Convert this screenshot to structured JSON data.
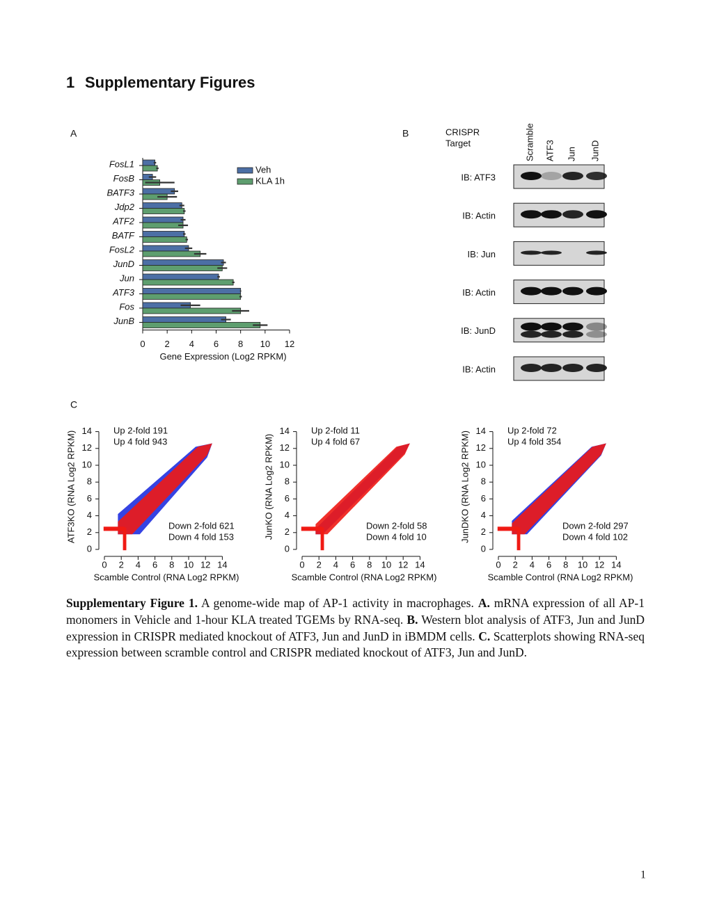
{
  "header": {
    "number": "1",
    "title": "Supplementary Figures"
  },
  "panels": {
    "a": "A",
    "b": "B",
    "c": "C"
  },
  "chart_data": [
    {
      "type": "bar",
      "orientation": "horizontal",
      "categories": [
        "FosL1",
        "FosB",
        "BATF3",
        "Jdp2",
        "ATF2",
        "BATF",
        "FosL2",
        "JunD",
        "Jun",
        "ATF3",
        "Fos",
        "JunB"
      ],
      "series": [
        {
          "name": "Veh",
          "color": "#4c6fa5",
          "values": [
            1.0,
            0.8,
            2.6,
            3.2,
            3.3,
            3.4,
            3.75,
            6.6,
            6.2,
            8.0,
            3.9,
            6.8
          ],
          "errors": [
            0.1,
            0.3,
            0.3,
            0.2,
            0.2,
            0.1,
            0.3,
            0.2,
            0.1,
            0.05,
            0.8,
            0.4
          ]
        },
        {
          "name": "KLA 1h",
          "color": "#5e9e6f",
          "values": [
            1.2,
            1.4,
            2.0,
            3.4,
            3.3,
            3.6,
            4.7,
            6.5,
            7.4,
            8.0,
            8.0,
            9.6
          ],
          "errors": [
            0.1,
            1.2,
            0.8,
            0.1,
            0.4,
            0.1,
            0.5,
            0.4,
            0.1,
            0.1,
            0.7,
            0.6
          ]
        }
      ],
      "xlabel": "Gene Expression (Log2 RPKM)",
      "xlim": [
        0,
        12
      ],
      "xticks": [
        0,
        2,
        4,
        6,
        8,
        10,
        12
      ],
      "legend": "upper right"
    },
    {
      "type": "scatter",
      "ylabel": "ATF3KO (RNA Log2 RPKM)",
      "xlabel": "Scamble Control (RNA Log2 RPKM)",
      "xlim": [
        0,
        14
      ],
      "ylim": [
        0,
        14
      ],
      "xticks": [
        0,
        2,
        4,
        6,
        8,
        10,
        12,
        14
      ],
      "yticks": [
        0,
        2,
        4,
        6,
        8,
        10,
        12,
        14
      ],
      "annotations": [
        "Up 2-fold 191",
        "Up 4 fold 943",
        "Down 2-fold 621",
        "Down 4 fold 153"
      ]
    },
    {
      "type": "scatter",
      "ylabel": "JunKO (RNA Log2 RPKM)",
      "xlabel": "Scamble Control (RNA Log2 RPKM)",
      "xlim": [
        0,
        14
      ],
      "ylim": [
        0,
        14
      ],
      "xticks": [
        0,
        2,
        4,
        6,
        8,
        10,
        12,
        14
      ],
      "yticks": [
        0,
        2,
        4,
        6,
        8,
        10,
        12,
        14
      ],
      "annotations": [
        "Up 2-fold 11",
        "Up 4 fold 67",
        "Down 2-fold 58",
        "Down 4 fold 10"
      ]
    },
    {
      "type": "scatter",
      "ylabel": "JunDKO (RNA Log2 RPKM)",
      "xlabel": "Scamble Control (RNA Log2 RPKM)",
      "xlim": [
        0,
        14
      ],
      "ylim": [
        0,
        14
      ],
      "xticks": [
        0,
        2,
        4,
        6,
        8,
        10,
        12,
        14
      ],
      "yticks": [
        0,
        2,
        4,
        6,
        8,
        10,
        12,
        14
      ],
      "annotations": [
        "Up 2-fold 72",
        "Up 4 fold 354",
        "Down 2-fold 297",
        "Down 4 fold 102"
      ]
    }
  ],
  "blot": {
    "title_lines": [
      "CRISPR",
      "Target"
    ],
    "lanes": [
      "Scramble",
      "ATF3",
      "Jun",
      "JunD"
    ],
    "rows": [
      "IB: ATF3",
      "IB: Actin",
      "IB: Jun",
      "IB: Actin",
      "IB: JunD",
      "IB: Actin"
    ]
  },
  "caption": {
    "runs": [
      "Supplementary Figure 1.",
      "A genome-wide map of AP-1 activity in macrophages.",
      "A.",
      "mRNA expression of all AP-1 monomers in Vehicle and 1-hour KLA treated TGEMs by RNA-seq.",
      "B.",
      "Western blot analysis of ATF3, Jun and JunD expression in CRISPR mediated knockout of ATF3, Jun and JunD in iBMDM cells.",
      "C.",
      "Scatterplots showing RNA-seq expression between scramble control and CRISPR mediated knockout of ATF3, Jun and JunD."
    ]
  },
  "page_number": "1"
}
